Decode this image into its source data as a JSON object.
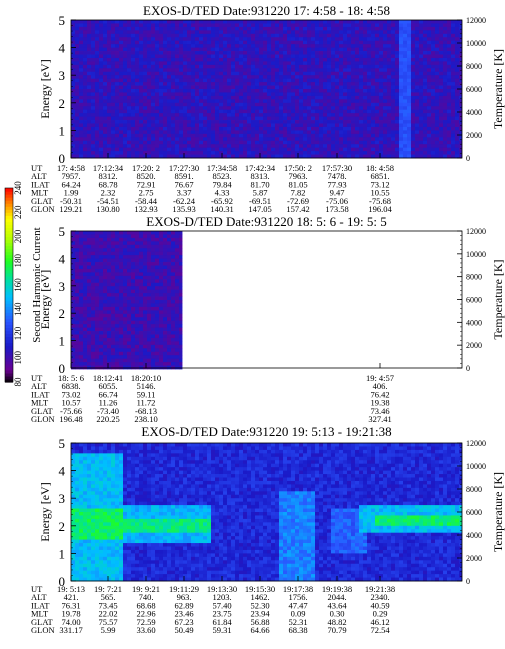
{
  "colorbar": {
    "label": "Second Harmonic Current",
    "ticks": [
      "80",
      "100",
      "120",
      "140",
      "160",
      "180",
      "200",
      "220",
      "240"
    ],
    "stops": [
      {
        "v": 80,
        "color": "#000000"
      },
      {
        "v": 90,
        "color": "#6a0090"
      },
      {
        "v": 110,
        "color": "#1a1ac8"
      },
      {
        "v": 130,
        "color": "#2a55ff"
      },
      {
        "v": 150,
        "color": "#00bfff"
      },
      {
        "v": 165,
        "color": "#00e0a0"
      },
      {
        "v": 180,
        "color": "#20ff20"
      },
      {
        "v": 200,
        "color": "#c0ff00"
      },
      {
        "v": 215,
        "color": "#ffff00"
      },
      {
        "v": 228,
        "color": "#ff8000"
      },
      {
        "v": 240,
        "color": "#ff0000"
      }
    ]
  },
  "chart_data": [
    {
      "type": "heatmap",
      "title": "EXOS-D/TED   Date:931220  17: 4:58 - 18: 4:58",
      "ylabel": "Energy [eV]",
      "y2label": "Temperature [K]",
      "ylim": [
        0,
        5
      ],
      "y2lim": [
        0,
        12000
      ],
      "yticks": [
        "0",
        "1",
        "2",
        "3",
        "4",
        "5"
      ],
      "y2ticks": [
        "0",
        "2000",
        "4000",
        "6000",
        "8000",
        "10000",
        "12000"
      ],
      "data_extent": 1.0,
      "background_level": 105,
      "bands": [],
      "vstripes": [
        {
          "x": 0.855,
          "w": 0.012,
          "level": 128
        }
      ],
      "table": {
        "row_labels": [
          "UT",
          "ALT",
          "ILAT",
          "MLT",
          "GLAT",
          "GLON"
        ],
        "columns": [
          [
            "17: 4:58",
            "7957.",
            "64.24",
            "1.99",
            "-50.31",
            "129.21"
          ],
          [
            "17:12:34",
            "8312.",
            "68.78",
            "2.32",
            "-54.51",
            "130.80"
          ],
          [
            "17:20: 2",
            "8520.",
            "72.91",
            "2.75",
            "-58.44",
            "132.93"
          ],
          [
            "17:27:30",
            "8591.",
            "76.67",
            "3.37",
            "-62.24",
            "135.93"
          ],
          [
            "17:34:58",
            "8523.",
            "79.84",
            "4.33",
            "-65.92",
            "140.31"
          ],
          [
            "17:42:34",
            "8313.",
            "81.70",
            "5.87",
            "-69.51",
            "147.05"
          ],
          [
            "17:50: 2",
            "7963.",
            "81.05",
            "7.82",
            "-72.69",
            "157.42"
          ],
          [
            "17:57:30",
            "7478.",
            "77.93",
            "9.47",
            "-75.06",
            "173.58"
          ],
          [
            "18: 4:58",
            "6851.",
            "73.12",
            "10.55",
            "-75.68",
            "196.04"
          ]
        ]
      }
    },
    {
      "type": "heatmap",
      "title": "EXOS-D/TED   Date:931220  18: 5: 6 - 19: 5: 5",
      "ylabel": "Energy [eV]",
      "y2label": "Temperature [K]",
      "ylim": [
        0,
        5
      ],
      "y2lim": [
        0,
        12000
      ],
      "yticks": [
        "0",
        "1",
        "2",
        "3",
        "4",
        "5"
      ],
      "y2ticks": [
        "0",
        "2000",
        "4000",
        "6000",
        "8000",
        "10000",
        "12000"
      ],
      "data_extent": 0.285,
      "background_level": 102,
      "bands": [],
      "vstripes": [],
      "table": {
        "row_labels": [
          "UT",
          "ALT",
          "ILAT",
          "MLT",
          "GLAT",
          "GLON"
        ],
        "columns": [
          [
            "18: 5: 6",
            "6838.",
            "73.02",
            "10.57",
            "-75.66",
            "196.48"
          ],
          [
            "18:12:41",
            "6055.",
            "66.74",
            "11.26",
            "-73.40",
            "220.25"
          ],
          [
            "18:20:10",
            "5146.",
            "59.11",
            "11.72",
            "-68.13",
            "238.10"
          ],
          [
            "19: 4:57",
            "406.",
            "76.42",
            "19.38",
            "73.46",
            "327.41"
          ]
        ]
      }
    },
    {
      "type": "heatmap",
      "title": "EXOS-D/TED   Date:931220  19: 5:13 - 19:21:38",
      "ylabel": "Energy [eV]",
      "y2label": "Temperature [K]",
      "ylim": [
        0,
        5
      ],
      "y2lim": [
        0,
        12000
      ],
      "yticks": [
        "0",
        "1",
        "2",
        "3",
        "4",
        "5"
      ],
      "y2ticks": [
        "0",
        "2000",
        "4000",
        "6000",
        "8000",
        "10000",
        "12000"
      ],
      "data_extent": 1.0,
      "background_level": 115,
      "bands": [
        {
          "x0": 0.0,
          "x1": 0.13,
          "y0": 0.0,
          "y1": 4.6,
          "level": 150
        },
        {
          "x0": 0.0,
          "x1": 0.13,
          "y0": 1.5,
          "y1": 2.6,
          "level": 172
        },
        {
          "x0": 0.13,
          "x1": 0.36,
          "y0": 1.4,
          "y1": 2.8,
          "level": 148
        },
        {
          "x0": 0.13,
          "x1": 0.36,
          "y0": 1.8,
          "y1": 2.2,
          "level": 168
        },
        {
          "x0": 0.53,
          "x1": 0.62,
          "y0": 0.0,
          "y1": 3.2,
          "level": 138
        },
        {
          "x0": 0.66,
          "x1": 0.76,
          "y0": 1.0,
          "y1": 2.6,
          "level": 132
        },
        {
          "x0": 0.74,
          "x1": 1.0,
          "y0": 1.8,
          "y1": 2.7,
          "level": 150
        },
        {
          "x0": 0.78,
          "x1": 1.0,
          "y0": 2.05,
          "y1": 2.35,
          "level": 172
        }
      ],
      "vstripes": [],
      "table": {
        "row_labels": [
          "UT",
          "ALT",
          "ILAT",
          "MLT",
          "GLAT",
          "GLON"
        ],
        "columns": [
          [
            "19: 5:13",
            "421.",
            "76.31",
            "19.78",
            "74.00",
            "331.17"
          ],
          [
            "19: 7:21",
            "565.",
            "73.45",
            "22.02",
            "75.57",
            "5.99"
          ],
          [
            "19: 9:21",
            "740.",
            "68.68",
            "22.96",
            "72.59",
            "33.60"
          ],
          [
            "19:11:29",
            "963.",
            "62.89",
            "23.46",
            "67.23",
            "50.49"
          ],
          [
            "19:13:30",
            "1203.",
            "57.40",
            "23.75",
            "61.84",
            "59.31"
          ],
          [
            "19:15:30",
            "1462.",
            "52.30",
            "23.94",
            "56.88",
            "64.66"
          ],
          [
            "19:17:38",
            "1756.",
            "47.47",
            "0.09",
            "52.31",
            "68.38"
          ],
          [
            "19:19:38",
            "2044.",
            "43.64",
            "0.30",
            "48.82",
            "70.79"
          ],
          [
            "19:21:38",
            "2340.",
            "40.59",
            "0.29",
            "46.12",
            "72.54"
          ]
        ]
      }
    }
  ]
}
